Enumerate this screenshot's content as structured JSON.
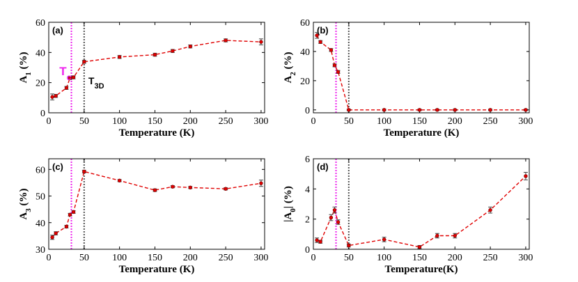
{
  "figure_title": "",
  "chart_data": [
    {
      "type": "line",
      "panel": "(a)",
      "xlabel": "Temperature (K)",
      "ylabel": "A_1 (%)",
      "ylabel_main": "A",
      "ylabel_sub": "1",
      "ylabel_rest": " (%)",
      "xlim": [
        0,
        305
      ],
      "ylim": [
        0,
        60
      ],
      "xticks": [
        0,
        50,
        100,
        150,
        200,
        250,
        300
      ],
      "yticks": [
        0,
        20,
        40,
        60
      ],
      "x": [
        5,
        10,
        25,
        30,
        35,
        50,
        100,
        150,
        175,
        200,
        250,
        300
      ],
      "y": [
        10.5,
        11.2,
        16.5,
        23,
        23.5,
        33.8,
        37,
        38.5,
        41,
        44,
        48,
        47
      ],
      "err": [
        2,
        1,
        1,
        1,
        1,
        1,
        1,
        1,
        1,
        1,
        1,
        2
      ],
      "color": "#e00000",
      "vlines": [
        {
          "x": 32,
          "color": "#ee22ee",
          "style": "dotted"
        },
        {
          "x": 50,
          "color": "#555555",
          "style": "dotted"
        }
      ],
      "annotations": [
        {
          "main": "T",
          "sub": "c",
          "color": "#ee22ee",
          "x": 15,
          "y": 25
        },
        {
          "main": "T",
          "sub": "3D",
          "color": "#000000",
          "x": 56,
          "y": 19
        }
      ]
    },
    {
      "type": "line",
      "panel": "(b)",
      "xlabel": "Temperature (K)",
      "ylabel": "A_2 (%)",
      "ylabel_main": "A",
      "ylabel_sub": "2",
      "ylabel_rest": " (%)",
      "xlim": [
        0,
        305
      ],
      "ylim": [
        -2,
        60
      ],
      "xticks": [
        0,
        50,
        100,
        150,
        200,
        250,
        300
      ],
      "yticks": [
        0,
        20,
        40,
        60
      ],
      "x": [
        5,
        10,
        25,
        30,
        35,
        50,
        100,
        150,
        175,
        200,
        250,
        300
      ],
      "y": [
        51,
        46.5,
        41,
        30.5,
        26,
        0,
        0,
        0,
        0,
        0,
        0,
        0
      ],
      "err": [
        2,
        1,
        1,
        1,
        1,
        0.5,
        0.5,
        0.5,
        0.5,
        0.5,
        0.5,
        0.5
      ],
      "color": "#e00000",
      "vlines": [
        {
          "x": 32,
          "color": "#ee22ee",
          "style": "dotted"
        },
        {
          "x": 50,
          "color": "#555555",
          "style": "dotted"
        }
      ],
      "annotations": []
    },
    {
      "type": "line",
      "panel": "(c)",
      "xlabel": "Temperature (K)",
      "ylabel": "A_3 (%)",
      "ylabel_main": "A",
      "ylabel_sub": "3",
      "ylabel_rest": " (%)",
      "xlim": [
        0,
        305
      ],
      "ylim": [
        30,
        64
      ],
      "xticks": [
        0,
        50,
        100,
        150,
        200,
        250,
        300
      ],
      "yticks": [
        30,
        40,
        50,
        60
      ],
      "x": [
        5,
        10,
        25,
        30,
        35,
        50,
        100,
        150,
        175,
        200,
        250,
        300
      ],
      "y": [
        34.5,
        36,
        38.5,
        43,
        44,
        59.2,
        55.8,
        52.2,
        53.5,
        53.2,
        52.7,
        54.8
      ],
      "err": [
        0.8,
        0.6,
        0.5,
        0.5,
        0.5,
        0.5,
        0.4,
        0.5,
        0.4,
        0.4,
        0.4,
        1.2
      ],
      "color": "#e00000",
      "vlines": [
        {
          "x": 32,
          "color": "#ee22ee",
          "style": "dotted"
        },
        {
          "x": 50,
          "color": "#555555",
          "style": "dotted"
        }
      ],
      "annotations": []
    },
    {
      "type": "line",
      "panel": "(d)",
      "xlabel": "Temperature(K)",
      "ylabel": "|A_0| (%)",
      "ylabel_main": "|A",
      "ylabel_sub": "0",
      "ylabel_rest": "| (%)",
      "xlim": [
        0,
        305
      ],
      "ylim": [
        0,
        6
      ],
      "xticks": [
        0,
        50,
        100,
        150,
        200,
        250,
        300
      ],
      "yticks": [
        0,
        2,
        4,
        6
      ],
      "x": [
        5,
        10,
        25,
        30,
        35,
        50,
        100,
        150,
        175,
        200,
        250,
        300
      ],
      "y": [
        0.6,
        0.5,
        2.1,
        2.6,
        1.8,
        0.25,
        0.65,
        0.15,
        0.9,
        0.9,
        2.6,
        4.85
      ],
      "err": [
        0.15,
        0.1,
        0.2,
        0.2,
        0.15,
        0.1,
        0.15,
        0.1,
        0.15,
        0.15,
        0.2,
        0.25
      ],
      "color": "#e00000",
      "vlines": [
        {
          "x": 32,
          "color": "#ee22ee",
          "style": "dotted"
        },
        {
          "x": 50,
          "color": "#555555",
          "style": "dotted"
        }
      ],
      "annotations": []
    }
  ]
}
